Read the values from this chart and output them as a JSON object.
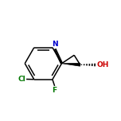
{
  "background_color": "#ffffff",
  "bond_color": "#000000",
  "atom_colors": {
    "N": "#0000cc",
    "Cl": "#007700",
    "F": "#007700",
    "O": "#cc0000",
    "C": "#000000"
  },
  "figsize": [
    1.52,
    1.52
  ],
  "dpi": 100,
  "lw": 1.1,
  "fs": 6.5
}
